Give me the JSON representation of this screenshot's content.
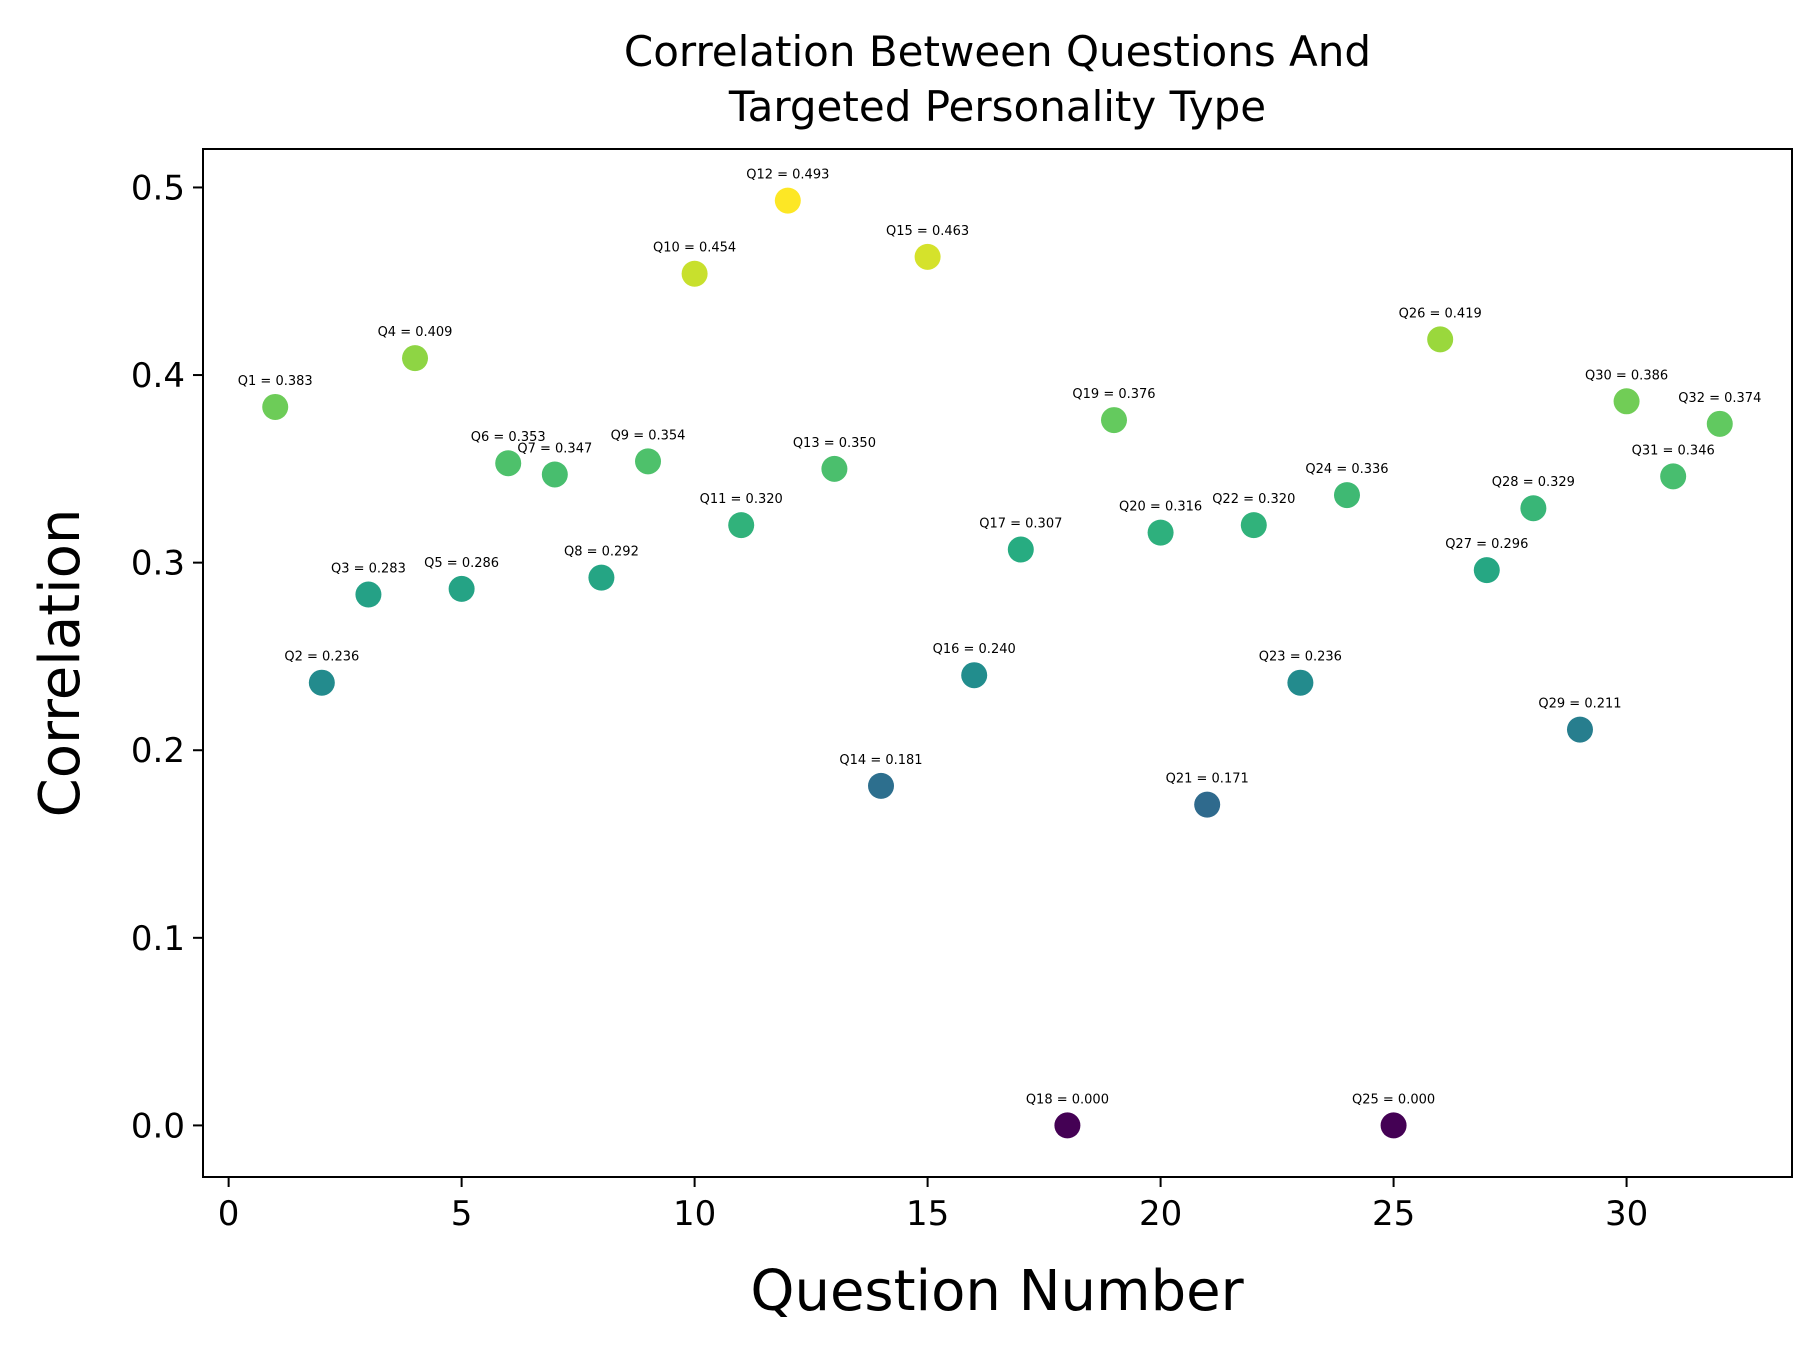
{
  "chart_data": {
    "type": "scatter",
    "title": "Correlation Between Questions And\nTargeted Personality Type",
    "xlabel": "Question Number",
    "ylabel": "Correlation",
    "xlim": [
      -0.55,
      33.55
    ],
    "ylim": [
      -0.0275,
      0.5205
    ],
    "xticks": [
      0,
      5,
      10,
      15,
      20,
      25,
      30
    ],
    "yticks": [
      0.0,
      0.1,
      0.2,
      0.3,
      0.4,
      0.5
    ],
    "colormap": "viridis",
    "grid": false,
    "points": [
      {
        "x": 1,
        "y": 0.383,
        "label": "Q1 = 0.383"
      },
      {
        "x": 2,
        "y": 0.236,
        "label": "Q2 = 0.236"
      },
      {
        "x": 3,
        "y": 0.283,
        "label": "Q3 = 0.283"
      },
      {
        "x": 4,
        "y": 0.409,
        "label": "Q4 = 0.409"
      },
      {
        "x": 5,
        "y": 0.286,
        "label": "Q5 = 0.286"
      },
      {
        "x": 6,
        "y": 0.353,
        "label": "Q6 = 0.353"
      },
      {
        "x": 7,
        "y": 0.347,
        "label": "Q7 = 0.347"
      },
      {
        "x": 8,
        "y": 0.292,
        "label": "Q8 = 0.292"
      },
      {
        "x": 9,
        "y": 0.354,
        "label": "Q9 = 0.354"
      },
      {
        "x": 10,
        "y": 0.454,
        "label": "Q10 = 0.454"
      },
      {
        "x": 11,
        "y": 0.32,
        "label": "Q11 = 0.320"
      },
      {
        "x": 12,
        "y": 0.493,
        "label": "Q12 = 0.493"
      },
      {
        "x": 13,
        "y": 0.35,
        "label": "Q13 = 0.350"
      },
      {
        "x": 14,
        "y": 0.181,
        "label": "Q14 = 0.181"
      },
      {
        "x": 15,
        "y": 0.463,
        "label": "Q15 = 0.463"
      },
      {
        "x": 16,
        "y": 0.24,
        "label": "Q16 = 0.240"
      },
      {
        "x": 17,
        "y": 0.307,
        "label": "Q17 = 0.307"
      },
      {
        "x": 18,
        "y": 0.0,
        "label": "Q18 = 0.000"
      },
      {
        "x": 19,
        "y": 0.376,
        "label": "Q19 = 0.376"
      },
      {
        "x": 20,
        "y": 0.316,
        "label": "Q20 = 0.316"
      },
      {
        "x": 21,
        "y": 0.171,
        "label": "Q21 = 0.171"
      },
      {
        "x": 22,
        "y": 0.32,
        "label": "Q22 = 0.320"
      },
      {
        "x": 23,
        "y": 0.236,
        "label": "Q23 = 0.236"
      },
      {
        "x": 24,
        "y": 0.336,
        "label": "Q24 = 0.336"
      },
      {
        "x": 25,
        "y": 0.0,
        "label": "Q25 = 0.000"
      },
      {
        "x": 26,
        "y": 0.419,
        "label": "Q26 = 0.419"
      },
      {
        "x": 27,
        "y": 0.296,
        "label": "Q27 = 0.296"
      },
      {
        "x": 28,
        "y": 0.329,
        "label": "Q28 = 0.329"
      },
      {
        "x": 29,
        "y": 0.211,
        "label": "Q29 = 0.211"
      },
      {
        "x": 30,
        "y": 0.386,
        "label": "Q30 = 0.386"
      },
      {
        "x": 31,
        "y": 0.346,
        "label": "Q31 = 0.346"
      },
      {
        "x": 32,
        "y": 0.374,
        "label": "Q32 = 0.374"
      }
    ]
  }
}
